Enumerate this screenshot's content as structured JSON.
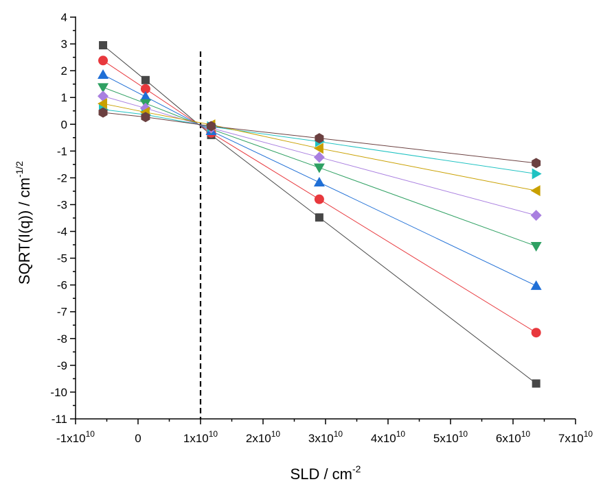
{
  "chart_data": {
    "type": "scatter",
    "xlabel": "SLD / cm",
    "xlabel_sup": "-2",
    "ylabel": "SQRT(I(q)) / cm",
    "ylabel_sup": "-1/2",
    "xlim": [
      -10000000000.0,
      70000000000.0
    ],
    "ylim": [
      -11,
      4
    ],
    "x_ticks": [
      {
        "value": -10000000000.0,
        "base": "-1x10",
        "exp": "10"
      },
      {
        "value": 0,
        "base": "0",
        "exp": ""
      },
      {
        "value": 10000000000.0,
        "base": "1x10",
        "exp": "10"
      },
      {
        "value": 20000000000.0,
        "base": "2x10",
        "exp": "10"
      },
      {
        "value": 30000000000.0,
        "base": "3x10",
        "exp": "10"
      },
      {
        "value": 40000000000.0,
        "base": "4x10",
        "exp": "10"
      },
      {
        "value": 50000000000.0,
        "base": "5x10",
        "exp": "10"
      },
      {
        "value": 60000000000.0,
        "base": "6x10",
        "exp": "10"
      },
      {
        "value": 70000000000.0,
        "base": "7x10",
        "exp": "10"
      }
    ],
    "y_ticks": [
      4,
      3,
      2,
      1,
      0,
      -1,
      -2,
      -3,
      -4,
      -5,
      -6,
      -7,
      -8,
      -9,
      -10,
      -11
    ],
    "x": [
      -5600000000.0,
      1200000000.0,
      11700000000.0,
      29000000000.0,
      63700000000.0
    ],
    "vertical_line": {
      "x": 10000000000.0,
      "style": "dashed",
      "color": "#000000"
    },
    "grid": false,
    "series": [
      {
        "values": [
          2.95,
          1.65,
          -0.4,
          -3.48,
          -9.68
        ],
        "marker": "square",
        "color": "#474747"
      },
      {
        "values": [
          2.38,
          1.32,
          -0.32,
          -2.8,
          -7.78
        ],
        "marker": "circle",
        "color": "#e8383d"
      },
      {
        "values": [
          1.85,
          1.03,
          -0.25,
          -2.17,
          -6.03
        ],
        "marker": "triangle-up",
        "color": "#1f6fd6"
      },
      {
        "values": [
          1.38,
          0.78,
          -0.18,
          -1.62,
          -4.55
        ],
        "marker": "triangle-down",
        "color": "#2ea062"
      },
      {
        "values": [
          1.05,
          0.6,
          -0.14,
          -1.23,
          -3.4
        ],
        "marker": "diamond",
        "color": "#a97fe0"
      },
      {
        "values": [
          0.55,
          0.36,
          -0.09,
          -0.65,
          -1.85
        ],
        "marker": "triangle-right",
        "color": "#1fc2c2"
      },
      {
        "values": [
          0.77,
          0.45,
          -0.02,
          -0.9,
          -2.48
        ],
        "marker": "triangle-left",
        "color": "#c9a000"
      },
      {
        "values": [
          0.44,
          0.27,
          -0.07,
          -0.52,
          -1.45
        ],
        "marker": "hexagon",
        "color": "#6b4040"
      }
    ]
  }
}
